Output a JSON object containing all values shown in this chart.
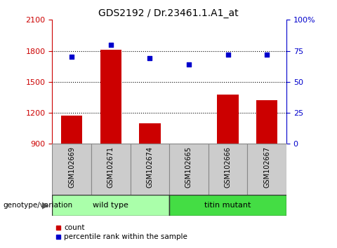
{
  "title": "GDS2192 / Dr.23461.1.A1_at",
  "samples": [
    "GSM102669",
    "GSM102671",
    "GSM102674",
    "GSM102665",
    "GSM102666",
    "GSM102667"
  ],
  "count_values": [
    1175,
    1810,
    1100,
    905,
    1375,
    1325
  ],
  "percentile_values": [
    70,
    80,
    69,
    64,
    72,
    72
  ],
  "ylim_left": [
    900,
    2100
  ],
  "ylim_right": [
    0,
    100
  ],
  "yticks_left": [
    900,
    1200,
    1500,
    1800,
    2100
  ],
  "yticks_right": [
    0,
    25,
    50,
    75,
    100
  ],
  "ytick_labels_right": [
    "0",
    "25",
    "50",
    "75",
    "100%"
  ],
  "bar_color": "#cc0000",
  "scatter_color": "#0000cc",
  "bar_bottom": 900,
  "groups": [
    {
      "label": "wild type",
      "indices": [
        0,
        1,
        2
      ],
      "color": "#aaffaa"
    },
    {
      "label": "titin mutant",
      "indices": [
        3,
        4,
        5
      ],
      "color": "#44dd44"
    }
  ],
  "genotype_label": "genotype/variation",
  "legend_count_label": "count",
  "legend_percentile_label": "percentile rank within the sample",
  "title_fontsize": 10,
  "axis_color_left": "#cc0000",
  "axis_color_right": "#0000cc",
  "sample_box_color": "#cccccc",
  "sample_box_edge": "#888888"
}
